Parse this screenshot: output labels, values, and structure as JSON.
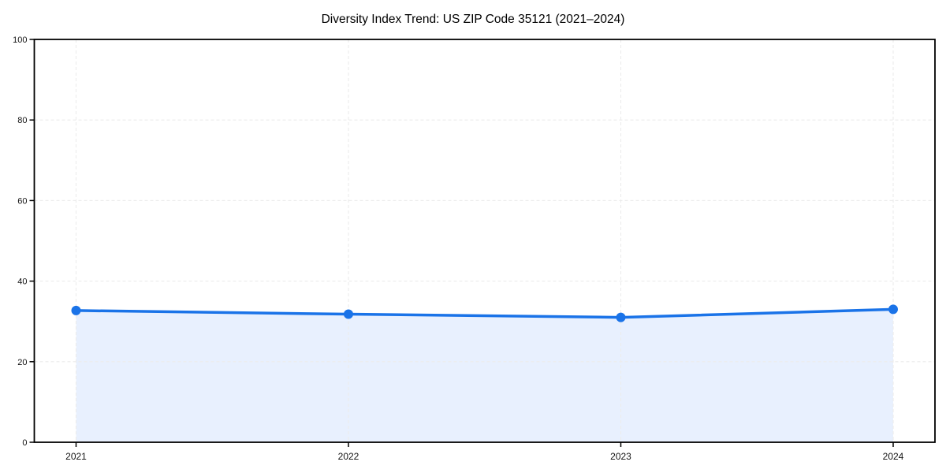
{
  "page": {
    "background_color": "#ffffff"
  },
  "chart_data": {
    "type": "area",
    "title": "Diversity Index Trend: US ZIP Code 35121 (2021–2024)",
    "series_name": "Diversity Index",
    "categories": [
      "2021",
      "2022",
      "2023",
      "2024"
    ],
    "values": [
      32.7,
      31.8,
      31.0,
      33.0
    ],
    "xlabel": "",
    "ylabel": "",
    "ylim": [
      0,
      100
    ],
    "yticks": [
      0,
      20,
      40,
      60,
      80,
      100
    ],
    "grid": "dashed",
    "legend": "none",
    "colors": {
      "line": "#1a73e8",
      "marker": "#1a73e8",
      "area_fill": "#e8f0fe",
      "grid": "#ececec",
      "axis": "#000000",
      "tick_text": "#111111",
      "title_text": "#000000"
    }
  }
}
